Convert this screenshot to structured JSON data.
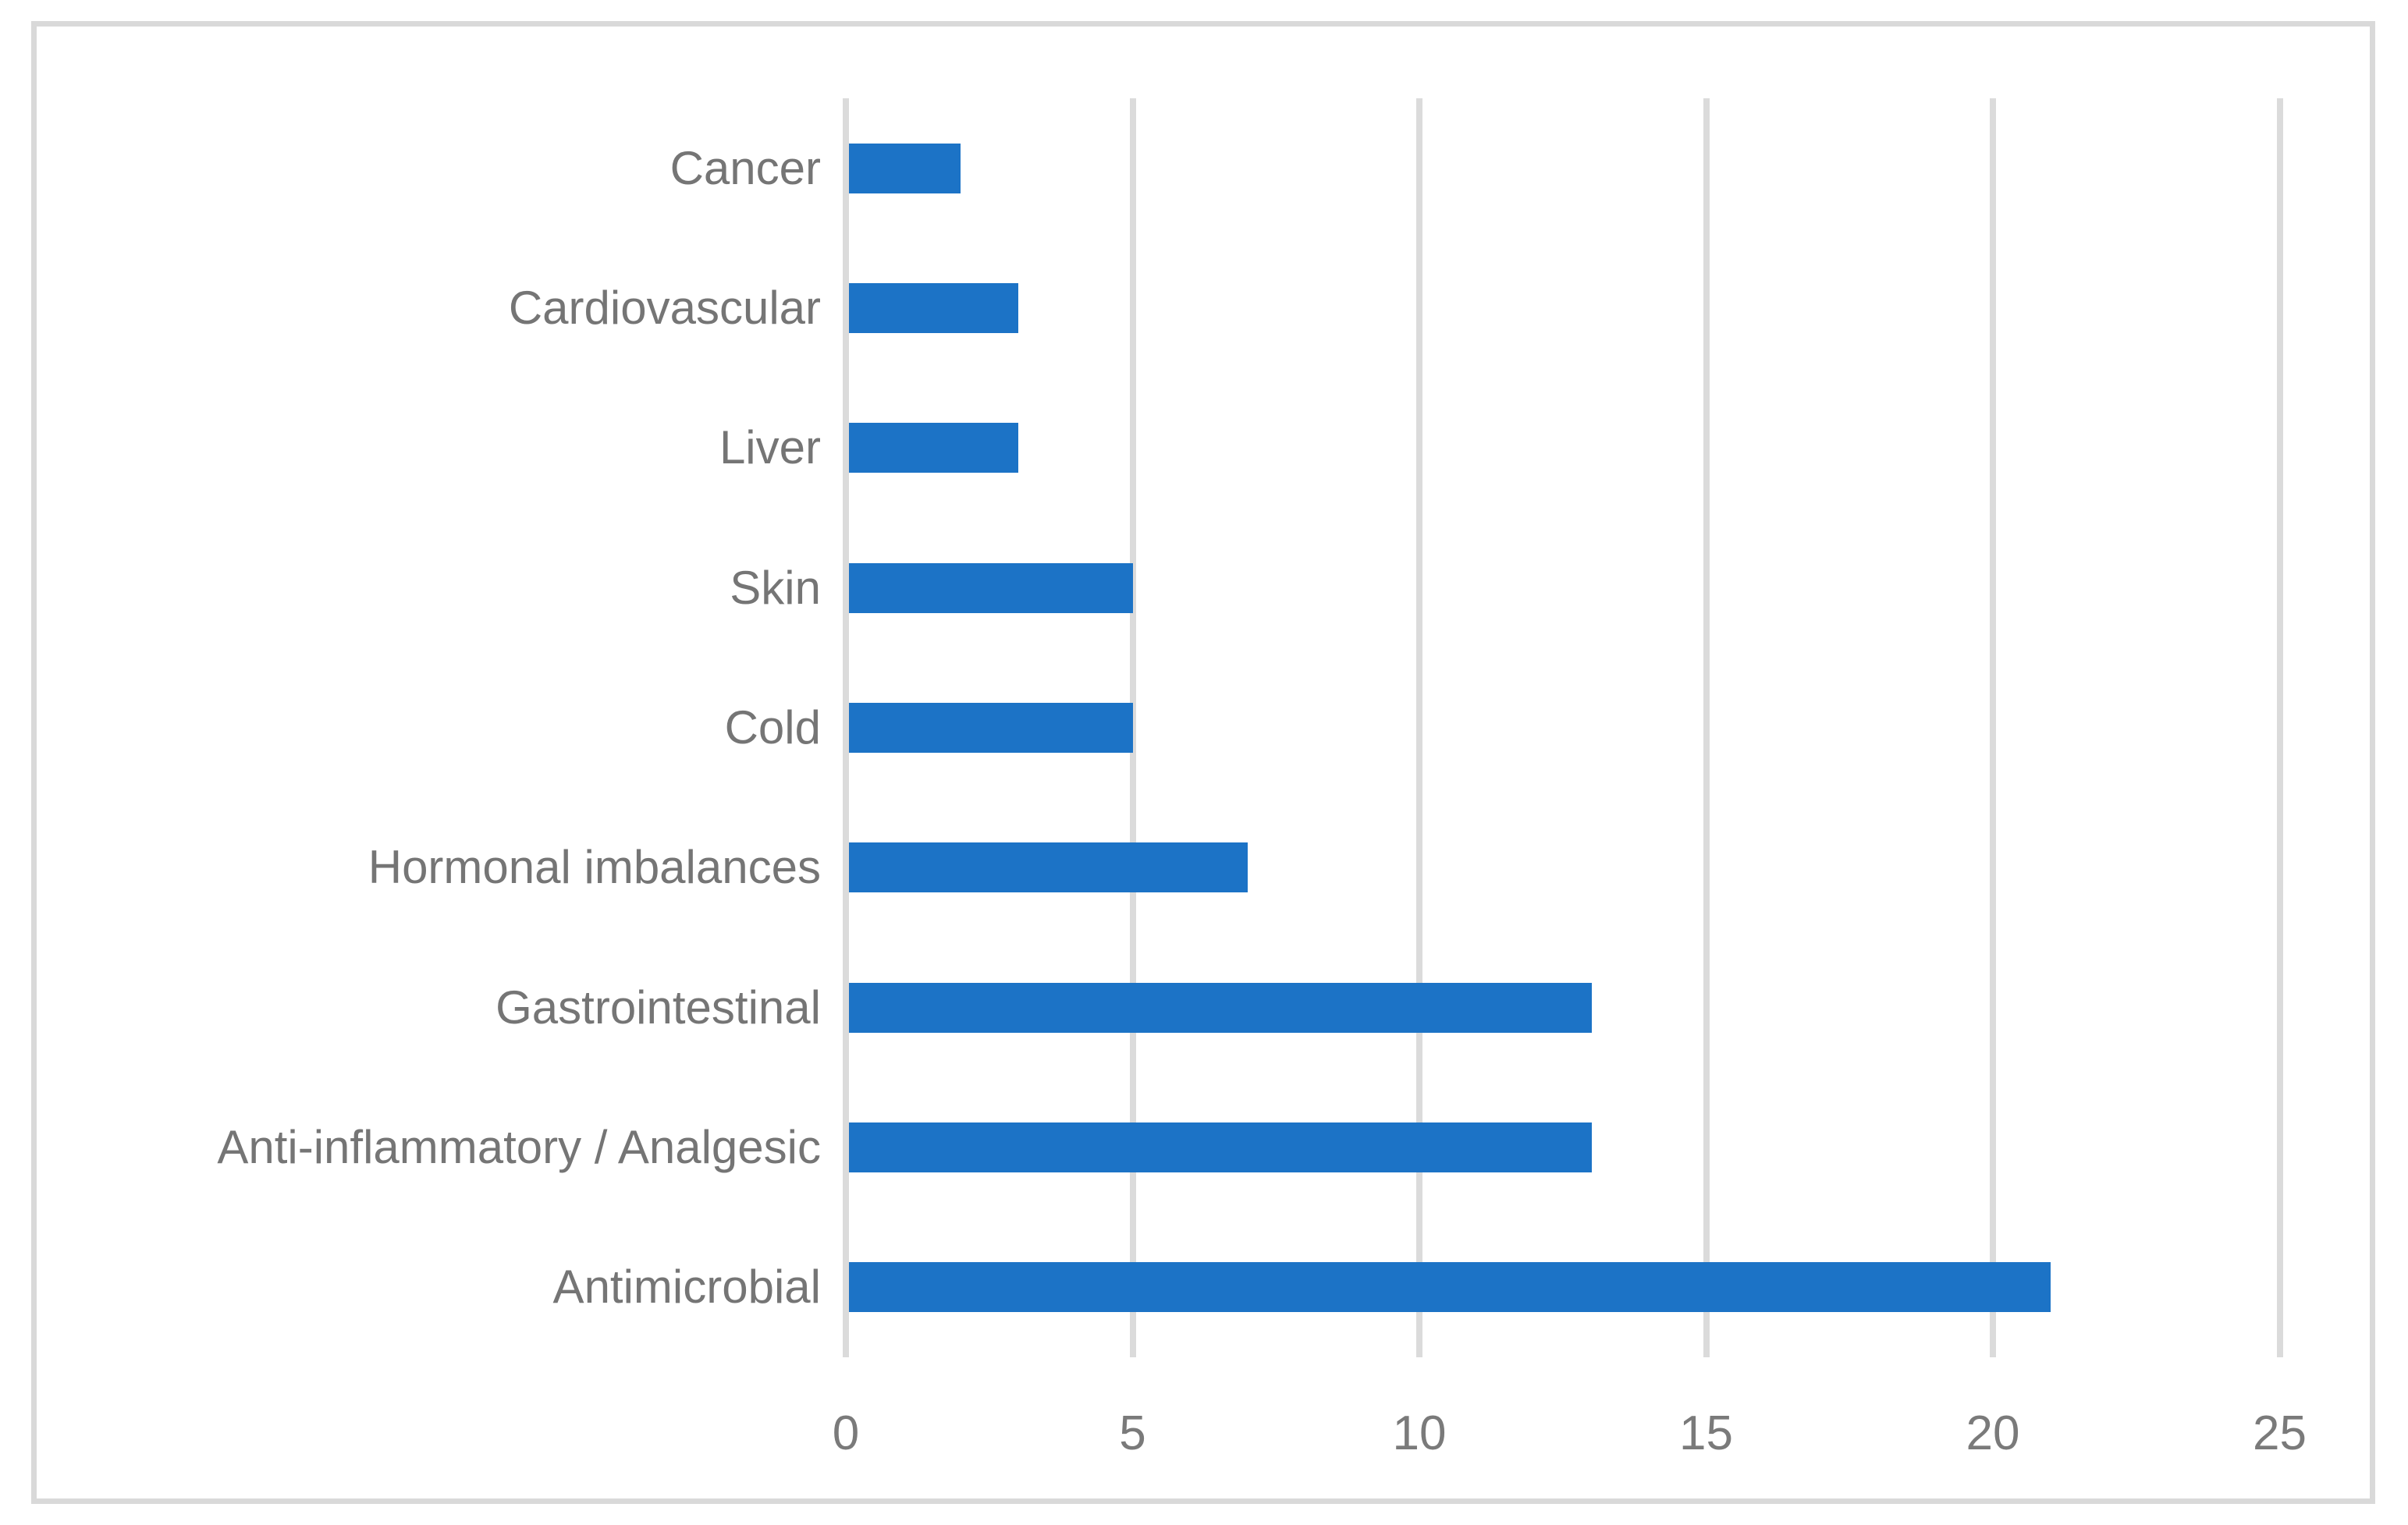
{
  "chart_data": {
    "type": "bar",
    "orientation": "horizontal",
    "title": "",
    "xlabel": "",
    "ylabel": "",
    "categories": [
      "Cancer",
      "Cardiovascular",
      "Liver",
      "Skin",
      "Cold",
      "Hormonal imbalances",
      "Gastrointestinal",
      "Anti-inflammatory / Analgesic",
      "Antimicrobial"
    ],
    "values": [
      2,
      3,
      3,
      5,
      5,
      7,
      13,
      13,
      21
    ],
    "x_ticks": [
      0,
      5,
      10,
      15,
      20,
      25
    ],
    "xlim": [
      0,
      25
    ],
    "grid": "vertical-only",
    "legend": "none",
    "colors": {
      "bar": "#1C73C6",
      "category_label": "#757575",
      "tick_label": "#7A7A7A",
      "gridline": "#DBDBDB",
      "frame_border": "#D9D9D9",
      "background": "#FFFFFF"
    }
  }
}
